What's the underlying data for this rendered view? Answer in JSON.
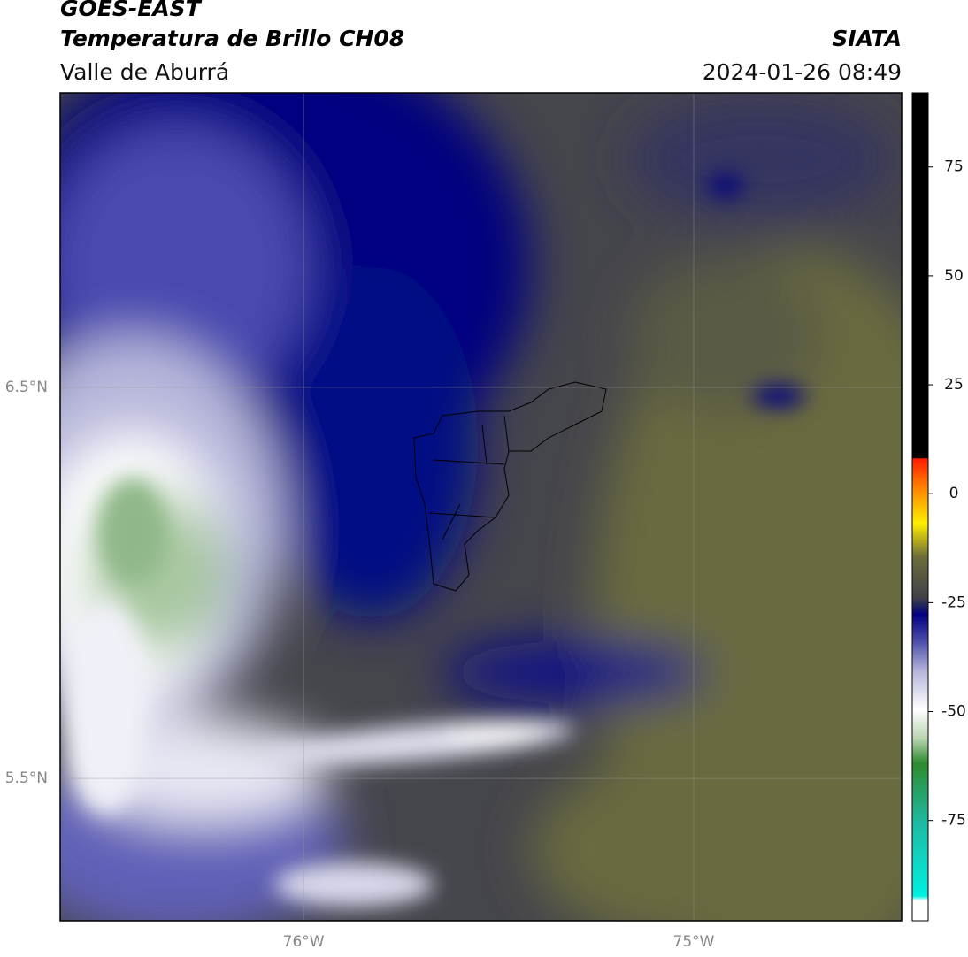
{
  "header": {
    "title": "GOES-EAST",
    "subtitle": "Temperatura de Brillo CH08",
    "region": "Valle de Aburrá",
    "source": "SIATA",
    "timestamp": "2024-01-26 08:49"
  },
  "map": {
    "xlim": [
      -76.624,
      -74.467
    ],
    "ylim": [
      5.136,
      7.253
    ],
    "xticks": [
      {
        "value": -76,
        "label": "76°W"
      },
      {
        "value": -75,
        "label": "75°W"
      }
    ],
    "yticks": [
      {
        "value": 6.5,
        "label": "6.5°N"
      },
      {
        "value": 5.5,
        "label": "5.5°N"
      }
    ]
  },
  "colorbar": {
    "lim": [
      -98,
      92
    ],
    "ticks": [
      75,
      50,
      25,
      0,
      -25,
      -50,
      -75
    ]
  }
}
